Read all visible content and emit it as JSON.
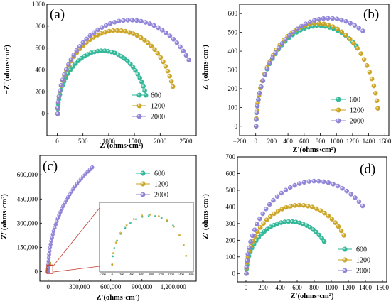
{
  "colors": {
    "600": "#2ab594",
    "1200": "#c9a11c",
    "2000": "#8b7fd6",
    "zoom": "#c0392b"
  },
  "chart_data": [
    {
      "panel": "(a)",
      "type": "scatter",
      "xlabel": "Z'(ohms·cm²)",
      "ylabel": "−Z''(ohms·cm²)",
      "xlim": [
        -200,
        2700
      ],
      "ylim": [
        -200,
        1000
      ],
      "xticks": [
        0,
        500,
        1000,
        1500,
        2000,
        2500
      ],
      "yticks": [
        0,
        200,
        400,
        600,
        800,
        1000
      ],
      "xtick_labels": [
        "0",
        "500",
        "1000",
        "1500",
        "2000",
        "2500"
      ],
      "ytick_labels": [
        "0",
        "200",
        "400",
        "600",
        "800",
        "1000"
      ],
      "legend": "bottom-right",
      "series": [
        {
          "name": "600",
          "r0": 10,
          "diameter": 1750,
          "peak": 575,
          "end_angle": 163,
          "n": 38
        },
        {
          "name": "1200",
          "r0": 10,
          "diameter": 2300,
          "peak": 760,
          "end_angle": 161,
          "n": 42
        },
        {
          "name": "2000",
          "r0": 10,
          "diameter": 2800,
          "peak": 855,
          "end_angle": 145,
          "n": 42
        }
      ]
    },
    {
      "panel": "(b)",
      "type": "scatter",
      "xlabel": "Z'(ohms·cm²)",
      "ylabel": "−Z''(ohms·cm²)",
      "xlim": [
        -200,
        1650
      ],
      "ylim": [
        -50,
        650
      ],
      "xticks": [
        -200,
        0,
        200,
        400,
        600,
        800,
        1000,
        1200,
        1400,
        1600
      ],
      "yticks": [
        0,
        100,
        200,
        300,
        400,
        500,
        600
      ],
      "xtick_labels": [
        "−200",
        "0",
        "200",
        "400",
        "600",
        "800",
        "1000",
        "1200",
        "1400",
        "1600"
      ],
      "ytick_labels": [
        "0",
        "100",
        "200",
        "300",
        "400",
        "500",
        "600"
      ],
      "legend": "bottom-right",
      "series": [
        {
          "name": "600",
          "r0": 5,
          "diameter": 1550,
          "peak": 535,
          "end_angle": 127,
          "n": 34
        },
        {
          "name": "1200",
          "r0": 5,
          "diameter": 1520,
          "peak": 548,
          "end_angle": 170,
          "n": 40
        },
        {
          "name": "2000",
          "r0": 5,
          "diameter": 1800,
          "peak": 575,
          "end_angle": 118,
          "n": 34
        }
      ]
    },
    {
      "panel": "(c)",
      "type": "scatter",
      "xlabel": "Z'(ohms·cm²)",
      "ylabel": "−Z''(ohms·cm²)",
      "xlim": [
        -80000,
        1420000
      ],
      "ylim": [
        -60000,
        720000
      ],
      "xticks": [
        0,
        300000,
        600000,
        900000,
        1200000
      ],
      "yticks": [
        0,
        150000,
        300000,
        450000,
        600000
      ],
      "xtick_labels": [
        "0",
        "300,000",
        "600,000",
        "900,000",
        "1,200,000"
      ],
      "ytick_labels": [
        "0",
        "150,000",
        "300,000",
        "450,000",
        "600,000"
      ],
      "legend": "top-right",
      "series": [
        {
          "name": "600",
          "r0": 0,
          "diameter": 1550,
          "peak": 535,
          "end_angle": 127,
          "n": 14
        },
        {
          "name": "1200",
          "r0": 0,
          "diameter": 1520,
          "peak": 548,
          "end_angle": 170,
          "n": 14
        },
        {
          "name": "2000",
          "r0": 0,
          "diameter": 2200000,
          "peak": 820000,
          "end_angle": 52,
          "n": 36
        }
      ],
      "inset": {
        "xlim": [
          -200,
          1600
        ],
        "ylim": [
          -50,
          650
        ],
        "xticks": [
          -200,
          0,
          200,
          400,
          600,
          800,
          1000,
          1200,
          1400,
          1600
        ],
        "xtick_labels": [
          "−200",
          "0",
          "200",
          "400",
          "600",
          "800",
          "1000",
          "1200",
          "1400",
          "1600"
        ],
        "zoom_box": [
          -12000,
          45000,
          -12000,
          40000
        ]
      }
    },
    {
      "panel": "(d)",
      "type": "scatter",
      "xlabel": "Z'(ohms·cm²)",
      "ylabel": "−Z''(ohms·cm²)",
      "xlim": [
        -100,
        1650
      ],
      "ylim": [
        -50,
        700
      ],
      "xticks": [
        0,
        200,
        400,
        600,
        800,
        1000,
        1200,
        1400,
        1600
      ],
      "yticks": [
        0,
        100,
        200,
        300,
        400,
        500,
        600,
        700
      ],
      "xtick_labels": [
        "0",
        "200",
        "400",
        "600",
        "800",
        "1000",
        "1200",
        "1400",
        "1600"
      ],
      "ytick_labels": [
        "0",
        "100",
        "200",
        "300",
        "400",
        "500",
        "600",
        "700"
      ],
      "legend": "bottom-right",
      "series": [
        {
          "name": "600",
          "r0": 5,
          "diameter": 1020,
          "peak": 312,
          "end_angle": 142,
          "n": 30
        },
        {
          "name": "1200",
          "r0": 5,
          "diameter": 1250,
          "peak": 410,
          "end_angle": 146,
          "n": 32
        },
        {
          "name": "2000",
          "r0": 5,
          "diameter": 1620,
          "peak": 555,
          "end_angle": 133,
          "n": 34
        }
      ]
    }
  ]
}
